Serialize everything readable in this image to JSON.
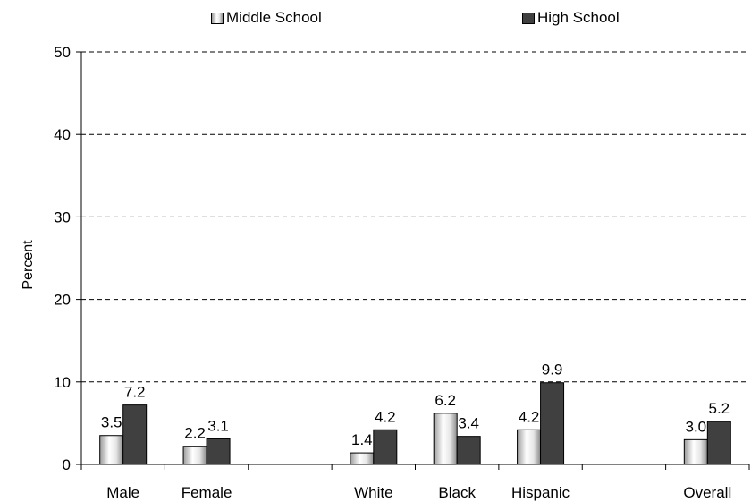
{
  "chart_data": {
    "type": "bar",
    "title": "",
    "xlabel": "",
    "ylabel": "Percent",
    "ylim": [
      0,
      50
    ],
    "yticks": [
      "0",
      "10",
      "20",
      "30",
      "40",
      "50"
    ],
    "grid": true,
    "legend_position": "top",
    "categories": [
      "Male",
      "Female",
      "",
      "White",
      "Black",
      "Hispanic",
      "",
      "Overall"
    ],
    "series": [
      {
        "name": "Middle School",
        "values": [
          3.5,
          2.2,
          null,
          1.4,
          6.2,
          4.2,
          null,
          3.0
        ],
        "labels": [
          "3.5",
          "2.2",
          "",
          "1.4",
          "6.2",
          "4.2",
          "",
          "3.0"
        ]
      },
      {
        "name": "High School",
        "values": [
          7.2,
          3.1,
          null,
          4.2,
          3.4,
          9.9,
          null,
          5.2
        ],
        "labels": [
          "7.2",
          "3.1",
          "",
          "4.2",
          "3.4",
          "9.9",
          "",
          "5.2"
        ]
      }
    ]
  },
  "colors": {
    "middle_school": "#d9d9d9",
    "high_school": "#404040",
    "grid": "#000000"
  }
}
